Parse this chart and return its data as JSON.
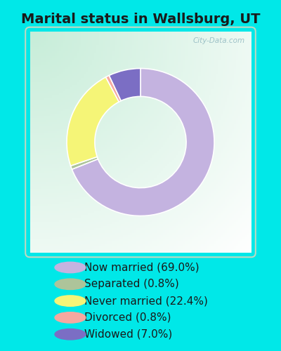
{
  "title": "Marital status in Wallsburg, UT",
  "slices": [
    69.0,
    0.8,
    22.4,
    0.8,
    7.0
  ],
  "labels": [
    "Now married (69.0%)",
    "Separated (0.8%)",
    "Never married (22.4%)",
    "Divorced (0.8%)",
    "Widowed (7.0%)"
  ],
  "colors": [
    "#c4b3e0",
    "#adc49a",
    "#f5f577",
    "#f5a8a0",
    "#7b6ec4"
  ],
  "bg_outer": "#00e8e8",
  "bg_chart_topleft": "#c8ecd8",
  "bg_chart_center": "#ffffff",
  "title_fontsize": 14,
  "legend_fontsize": 11,
  "watermark": "City-Data.com",
  "startangle": 90,
  "donut_width": 0.38
}
